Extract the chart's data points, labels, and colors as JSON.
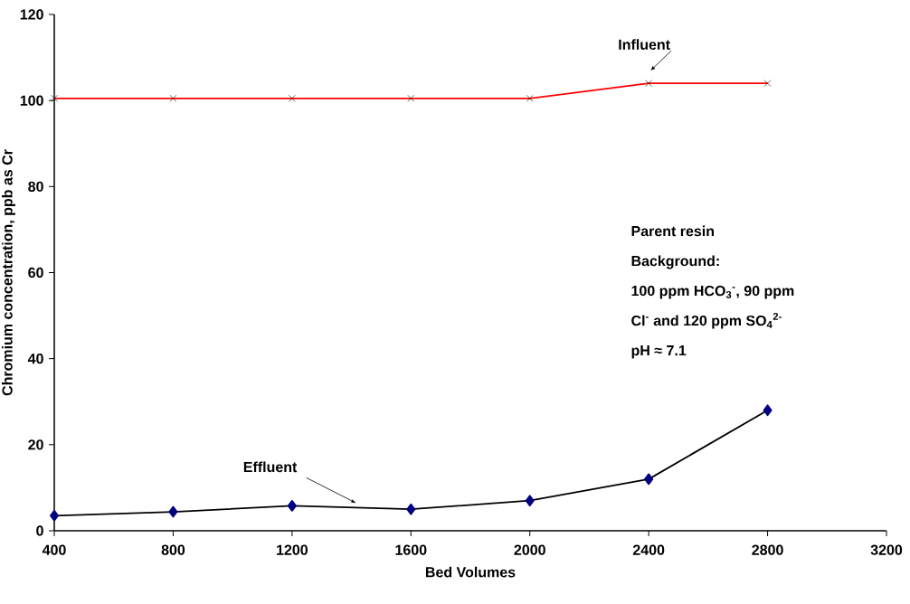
{
  "chart_data": {
    "type": "line",
    "xlabel": "Bed Volumes",
    "ylabel": "Chromium concentration, ppb as Cr",
    "x": [
      400,
      800,
      1200,
      1600,
      2000,
      2400,
      2800
    ],
    "series": [
      {
        "name": "Influent",
        "color": "#ff0000",
        "marker": "cross",
        "values": [
          100.5,
          100.5,
          100.5,
          100.5,
          100.5,
          104,
          104
        ]
      },
      {
        "name": "Effluent",
        "color": "#000000",
        "marker": "diamond",
        "values": [
          3.5,
          4.4,
          5.8,
          5.0,
          7.0,
          12.0,
          28.0
        ]
      }
    ],
    "xlim": [
      400,
      3200
    ],
    "xticks": [
      400,
      800,
      1200,
      1600,
      2000,
      2400,
      2800,
      3200
    ],
    "ylim": [
      0,
      120
    ],
    "yticks": [
      0,
      20,
      40,
      60,
      80,
      100,
      120
    ],
    "annotations": [
      "Parent resin",
      "Background:",
      "100 ppm HCO$_{3}$$^{-}$, 90 ppm",
      "Cl$^{-}$ and 120 ppm SO$_{4}$$^{2-}$",
      "pH ≈ 7.1"
    ],
    "grid": false,
    "legend": false
  }
}
